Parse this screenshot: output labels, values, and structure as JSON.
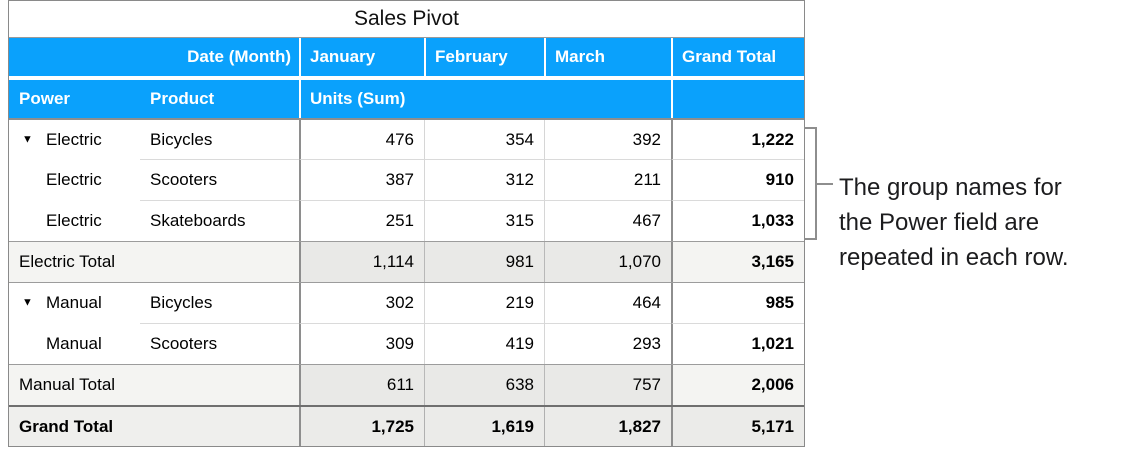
{
  "title": "Sales Pivot",
  "colors": {
    "header_blue": "#0aa1fc",
    "header_text": "#ffffff",
    "subtotal_label_bg": "#f4f4f2",
    "subtotal_value_bg": "#e9e9e7",
    "grand_total_bg": "#ebebe9",
    "major_border": "#8e8e8e",
    "minor_border": "#dadada",
    "annotation_line": "#8e8e8e"
  },
  "icons": {
    "disclosure": "▼"
  },
  "header": {
    "date_label": "Date (Month)",
    "months": [
      "January",
      "February",
      "March"
    ],
    "grand_total_label": "Grand Total",
    "power_label": "Power",
    "product_label": "Product",
    "units_label": "Units (Sum)",
    "empty": ""
  },
  "table": {
    "groups": [
      {
        "name": "Electric",
        "rows": [
          {
            "power": "Electric",
            "product": "Bicycles",
            "values": [
              "476",
              "354",
              "392"
            ],
            "total": "1,222"
          },
          {
            "power": "Electric",
            "product": "Scooters",
            "values": [
              "387",
              "312",
              "211"
            ],
            "total": "910"
          },
          {
            "power": "Electric",
            "product": "Skateboards",
            "values": [
              "251",
              "315",
              "467"
            ],
            "total": "1,033"
          }
        ],
        "total_row": {
          "label": "Electric Total",
          "values": [
            "1,114",
            "981",
            "1,070"
          ],
          "total": "3,165"
        }
      },
      {
        "name": "Manual",
        "rows": [
          {
            "power": "Manual",
            "product": "Bicycles",
            "values": [
              "302",
              "219",
              "464"
            ],
            "total": "985"
          },
          {
            "power": "Manual",
            "product": "Scooters",
            "values": [
              "309",
              "419",
              "293"
            ],
            "total": "1,021"
          }
        ],
        "total_row": {
          "label": "Manual Total",
          "values": [
            "611",
            "638",
            "757"
          ],
          "total": "2,006"
        }
      }
    ],
    "grand_total_row": {
      "label": "Grand Total",
      "values": [
        "1,725",
        "1,619",
        "1,827"
      ],
      "total": "5,171"
    }
  },
  "annotation": {
    "lines": [
      "The group names for",
      "the Power field are",
      "repeated in each row."
    ]
  }
}
